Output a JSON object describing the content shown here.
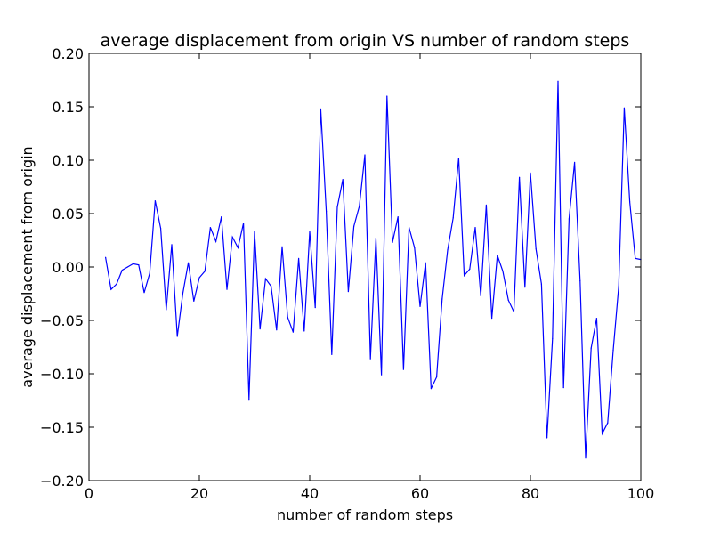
{
  "chart_data": {
    "type": "line",
    "title": "average displacement from origin VS number of random steps",
    "xlabel": "number of random steps",
    "ylabel": "average displacement from origin",
    "xlim": [
      0,
      100
    ],
    "ylim": [
      -0.2,
      0.2
    ],
    "xticks": [
      "0",
      "20",
      "40",
      "60",
      "80",
      "100"
    ],
    "yticks": [
      "0.20",
      "0.15",
      "0.10",
      "0.05",
      "0.00",
      "−0.05",
      "−0.10",
      "−0.15",
      "−0.20"
    ],
    "grid": false,
    "legend": "none",
    "series_color": "#0000ff",
    "x": [
      3,
      4,
      5,
      6,
      7,
      8,
      9,
      10,
      11,
      12,
      13,
      14,
      15,
      16,
      17,
      18,
      19,
      20,
      21,
      22,
      23,
      24,
      25,
      26,
      27,
      28,
      29,
      30,
      31,
      32,
      33,
      34,
      35,
      36,
      37,
      38,
      39,
      40,
      41,
      42,
      43,
      44,
      45,
      46,
      47,
      48,
      49,
      50,
      51,
      52,
      53,
      54,
      55,
      56,
      57,
      58,
      59,
      60,
      61,
      62,
      63,
      64,
      65,
      66,
      67,
      68,
      69,
      70,
      71,
      72,
      73,
      74,
      75,
      76,
      77,
      78,
      79,
      80,
      81,
      82,
      83,
      84,
      85,
      86,
      87,
      88,
      89,
      90,
      91,
      92,
      93,
      94,
      95,
      96,
      97,
      98,
      99,
      100
    ],
    "y": [
      0.009,
      -0.021,
      -0.016,
      -0.003,
      0.0,
      0.003,
      0.002,
      -0.024,
      -0.006,
      0.062,
      0.036,
      -0.04,
      0.021,
      -0.065,
      -0.025,
      0.004,
      -0.032,
      -0.01,
      -0.004,
      0.037,
      0.024,
      0.047,
      -0.021,
      0.028,
      0.018,
      0.041,
      -0.124,
      0.033,
      -0.058,
      -0.011,
      -0.018,
      -0.059,
      0.019,
      -0.047,
      -0.061,
      0.008,
      -0.06,
      0.033,
      -0.038,
      0.148,
      0.052,
      -0.082,
      0.056,
      0.082,
      -0.023,
      0.038,
      0.057,
      0.105,
      -0.086,
      0.027,
      -0.101,
      0.16,
      0.023,
      0.047,
      -0.096,
      0.037,
      0.018,
      -0.037,
      0.004,
      -0.114,
      -0.103,
      -0.03,
      0.016,
      0.046,
      0.102,
      -0.008,
      -0.002,
      0.037,
      -0.027,
      0.058,
      -0.048,
      0.011,
      -0.004,
      -0.031,
      -0.042,
      0.084,
      -0.019,
      0.088,
      0.017,
      -0.016,
      -0.16,
      -0.067,
      0.174,
      -0.113,
      0.045,
      0.098,
      -0.013,
      -0.179,
      -0.076,
      -0.048,
      -0.156,
      -0.146,
      -0.078,
      -0.018,
      0.149,
      0.061,
      0.008,
      0.007
    ]
  }
}
